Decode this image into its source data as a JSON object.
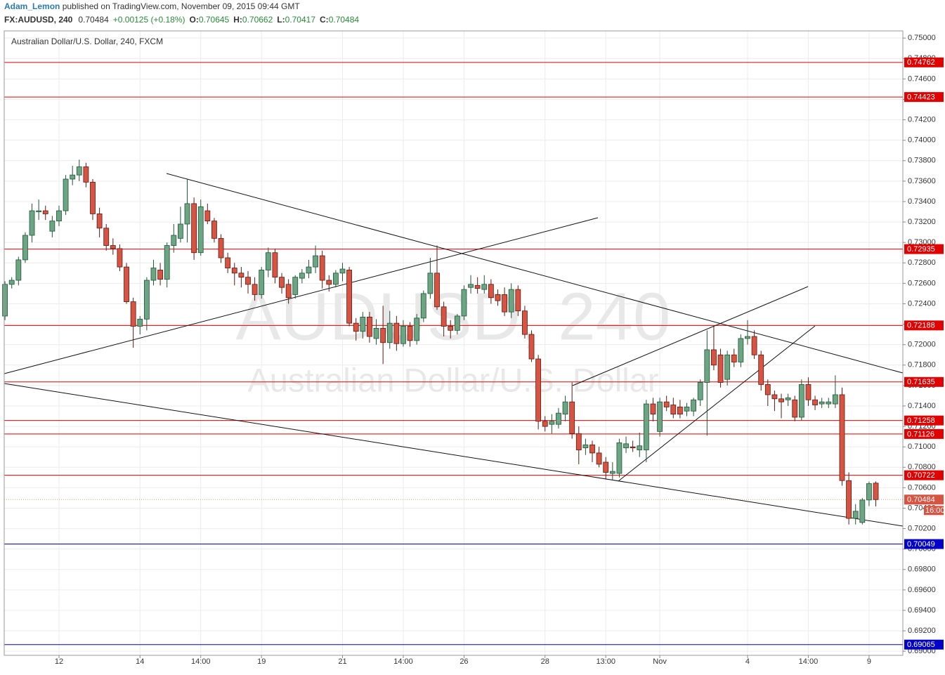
{
  "header": {
    "author": "Adam_Lemon",
    "published": " published on TradingView.com, November 09, 2015 09:44 GMT",
    "symbol": "FX:AUDUSD, 240",
    "change": "+0.00125 (+0.18%)",
    "ohlc_labels": [
      "O:",
      "H:",
      "L:",
      "C:"
    ]
  },
  "chart_data": {
    "type": "candlestick",
    "title": "Australian Dollar/U.S. Dollar, 240, FXCM",
    "watermark_symbol": "AUDUSD, 240",
    "watermark_name": "Australian Dollar/U.S. Dollar",
    "countdown": "16:00",
    "up_color": "#6ba583",
    "down_color": "#d75442",
    "up_border": "#225437",
    "down_border": "#5b1a13",
    "last_price_color": "#e8a36a",
    "grid": true,
    "ylim": [
      0.6896,
      0.7507
    ],
    "yticks": [
      {
        "value": 0.69,
        "label": "0.69000"
      },
      {
        "value": 0.692,
        "label": "0.69200"
      },
      {
        "value": 0.694,
        "label": "0.69400"
      },
      {
        "value": 0.696,
        "label": "0.69600"
      },
      {
        "value": 0.698,
        "label": "0.69800"
      },
      {
        "value": 0.7,
        "label": "0.70000"
      },
      {
        "value": 0.702,
        "label": "0.70200"
      },
      {
        "value": 0.704,
        "label": "0.70400"
      },
      {
        "value": 0.706,
        "label": "0.70600"
      },
      {
        "value": 0.708,
        "label": "0.70800"
      },
      {
        "value": 0.71,
        "label": "0.71000"
      },
      {
        "value": 0.712,
        "label": "0.71200"
      },
      {
        "value": 0.714,
        "label": "0.71400"
      },
      {
        "value": 0.716,
        "label": "0.71600"
      },
      {
        "value": 0.718,
        "label": "0.71800"
      },
      {
        "value": 0.72,
        "label": "0.72000"
      },
      {
        "value": 0.722,
        "label": "0.72200"
      },
      {
        "value": 0.724,
        "label": "0.72400"
      },
      {
        "value": 0.726,
        "label": "0.72600"
      },
      {
        "value": 0.728,
        "label": "0.72800"
      },
      {
        "value": 0.73,
        "label": "0.73000"
      },
      {
        "value": 0.732,
        "label": "0.73200"
      },
      {
        "value": 0.734,
        "label": "0.73400"
      },
      {
        "value": 0.736,
        "label": "0.73600"
      },
      {
        "value": 0.738,
        "label": "0.73800"
      },
      {
        "value": 0.74,
        "label": "0.74000"
      },
      {
        "value": 0.742,
        "label": "0.74200"
      },
      {
        "value": 0.744,
        "label": "0.74400"
      },
      {
        "value": 0.746,
        "label": "0.74600"
      },
      {
        "value": 0.748,
        "label": "0.74800"
      },
      {
        "value": 0.75,
        "label": "0.75000"
      }
    ],
    "levels": [
      {
        "value": 0.74762,
        "color": "#e00000"
      },
      {
        "value": 0.74423,
        "color": "#e00000"
      },
      {
        "value": 0.72935,
        "color": "#e00000"
      },
      {
        "value": 0.72188,
        "color": "#e00000"
      },
      {
        "value": 0.71635,
        "color": "#e00000"
      },
      {
        "value": 0.71258,
        "color": "#e00000"
      },
      {
        "value": 0.71126,
        "color": "#e00000"
      },
      {
        "value": 0.70722,
        "color": "#e00000"
      },
      {
        "value": 0.70049,
        "color": "#0000c8"
      },
      {
        "value": 0.69065,
        "color": "#0000c8"
      }
    ],
    "categories": [
      null,
      null,
      null,
      null,
      null,
      null,
      null,
      null,
      "12",
      null,
      null,
      null,
      null,
      null,
      null,
      null,
      null,
      null,
      null,
      null,
      "14",
      null,
      null,
      null,
      null,
      null,
      null,
      null,
      null,
      "14:00",
      null,
      null,
      null,
      null,
      null,
      null,
      null,
      null,
      "19",
      null,
      null,
      null,
      null,
      null,
      null,
      null,
      null,
      null,
      null,
      null,
      "21",
      null,
      null,
      null,
      null,
      null,
      null,
      null,
      null,
      "14:00",
      null,
      null,
      null,
      null,
      null,
      null,
      null,
      null,
      "26",
      null,
      null,
      null,
      null,
      null,
      null,
      null,
      null,
      null,
      null,
      null,
      "28",
      null,
      null,
      null,
      null,
      null,
      null,
      null,
      null,
      "13:00",
      null,
      null,
      null,
      null,
      null,
      null,
      null,
      "Nov",
      null,
      null,
      null,
      null,
      null,
      null,
      null,
      null,
      null,
      null,
      null,
      null,
      "4",
      null,
      null,
      null,
      null,
      null,
      null,
      null,
      null,
      "14:00",
      null,
      null,
      null,
      null,
      null,
      null,
      null,
      null,
      "9",
      null
    ],
    "candles": [
      [
        0.7228,
        0.7262,
        0.7224,
        0.7259
      ],
      [
        0.7259,
        0.7266,
        0.7255,
        0.7263
      ],
      [
        0.7263,
        0.7286,
        0.7258,
        0.7283
      ],
      [
        0.7283,
        0.731,
        0.728,
        0.7307
      ],
      [
        0.7307,
        0.7338,
        0.73,
        0.7331
      ],
      [
        0.733,
        0.7342,
        0.7322,
        0.7331
      ],
      [
        0.7331,
        0.7336,
        0.7322,
        0.7328
      ],
      [
        0.7311,
        0.7326,
        0.7305,
        0.7321
      ],
      [
        0.7321,
        0.7336,
        0.7316,
        0.7331
      ],
      [
        0.7331,
        0.7366,
        0.7327,
        0.7362
      ],
      [
        0.7362,
        0.7375,
        0.7356,
        0.7366
      ],
      [
        0.7366,
        0.7381,
        0.736,
        0.7374
      ],
      [
        0.7374,
        0.7378,
        0.7354,
        0.7359
      ],
      [
        0.7359,
        0.7362,
        0.7322,
        0.7328
      ],
      [
        0.7328,
        0.7334,
        0.7305,
        0.7314
      ],
      [
        0.7314,
        0.7318,
        0.7292,
        0.7297
      ],
      [
        0.7297,
        0.7304,
        0.7288,
        0.7294
      ],
      [
        0.7294,
        0.7298,
        0.7272,
        0.7276
      ],
      [
        0.7276,
        0.728,
        0.724,
        0.7242
      ],
      [
        0.7242,
        0.7246,
        0.7197,
        0.7218
      ],
      [
        0.7218,
        0.7228,
        0.721,
        0.7225
      ],
      [
        0.7225,
        0.7266,
        0.7214,
        0.7263
      ],
      [
        0.7263,
        0.7283,
        0.7258,
        0.7275
      ],
      [
        0.7273,
        0.728,
        0.7258,
        0.7264
      ],
      [
        0.7264,
        0.73,
        0.7256,
        0.7297
      ],
      [
        0.7297,
        0.7318,
        0.729,
        0.7307
      ],
      [
        0.7304,
        0.7335,
        0.73,
        0.7318
      ],
      [
        0.7318,
        0.7362,
        0.73,
        0.7338
      ],
      [
        0.7338,
        0.7344,
        0.7283,
        0.729
      ],
      [
        0.729,
        0.7342,
        0.7287,
        0.7335
      ],
      [
        0.7331,
        0.7338,
        0.7318,
        0.7321
      ],
      [
        0.7321,
        0.7324,
        0.73,
        0.7304
      ],
      [
        0.7304,
        0.7308,
        0.728,
        0.7285
      ],
      [
        0.7285,
        0.729,
        0.727,
        0.7275
      ],
      [
        0.7275,
        0.728,
        0.7258,
        0.727
      ],
      [
        0.727,
        0.7276,
        0.7256,
        0.7266
      ],
      [
        0.7266,
        0.7272,
        0.725,
        0.7259
      ],
      [
        0.7259,
        0.7266,
        0.7243,
        0.7249
      ],
      [
        0.7249,
        0.7276,
        0.7245,
        0.7273
      ],
      [
        0.7273,
        0.7295,
        0.7266,
        0.729
      ],
      [
        0.729,
        0.7294,
        0.726,
        0.7266
      ],
      [
        0.7266,
        0.727,
        0.725,
        0.7256
      ],
      [
        0.7259,
        0.7264,
        0.724,
        0.7246
      ],
      [
        0.7249,
        0.7268,
        0.7245,
        0.7266
      ],
      [
        0.7265,
        0.7274,
        0.726,
        0.727
      ],
      [
        0.727,
        0.7283,
        0.7265,
        0.7276
      ],
      [
        0.7276,
        0.7297,
        0.727,
        0.7287
      ],
      [
        0.7287,
        0.7292,
        0.7255,
        0.7263
      ],
      [
        0.7263,
        0.7268,
        0.7252,
        0.7259
      ],
      [
        0.7259,
        0.7273,
        0.7256,
        0.727
      ],
      [
        0.727,
        0.728,
        0.7262,
        0.7274
      ],
      [
        0.7273,
        0.7276,
        0.7218,
        0.7221
      ],
      [
        0.7221,
        0.7226,
        0.7204,
        0.7213
      ],
      [
        0.7213,
        0.7232,
        0.7206,
        0.7227
      ],
      [
        0.7227,
        0.7232,
        0.7202,
        0.7208
      ],
      [
        0.7206,
        0.7225,
        0.72,
        0.7216
      ],
      [
        0.7216,
        0.7238,
        0.7181,
        0.7202
      ],
      [
        0.7202,
        0.7233,
        0.7196,
        0.7221
      ],
      [
        0.7221,
        0.7228,
        0.7194,
        0.7201
      ],
      [
        0.7201,
        0.7224,
        0.7198,
        0.7218
      ],
      [
        0.7218,
        0.7222,
        0.7198,
        0.7204
      ],
      [
        0.7204,
        0.723,
        0.72,
        0.7226
      ],
      [
        0.7226,
        0.7253,
        0.7222,
        0.725
      ],
      [
        0.725,
        0.7285,
        0.7245,
        0.727
      ],
      [
        0.727,
        0.7297,
        0.7234,
        0.7237
      ],
      [
        0.7237,
        0.7242,
        0.7208,
        0.7218
      ],
      [
        0.7218,
        0.7224,
        0.7206,
        0.7214
      ],
      [
        0.7214,
        0.723,
        0.721,
        0.7228
      ],
      [
        0.7228,
        0.7258,
        0.7224,
        0.7254
      ],
      [
        0.7256,
        0.7268,
        0.725,
        0.7259
      ],
      [
        0.7258,
        0.7266,
        0.725,
        0.7255
      ],
      [
        0.7254,
        0.7268,
        0.725,
        0.7259
      ],
      [
        0.7259,
        0.7264,
        0.724,
        0.7246
      ],
      [
        0.7249,
        0.7254,
        0.7238,
        0.7243
      ],
      [
        0.7249,
        0.7256,
        0.7228,
        0.7232
      ],
      [
        0.7232,
        0.726,
        0.7226,
        0.7254
      ],
      [
        0.7254,
        0.7258,
        0.7228,
        0.7233
      ],
      [
        0.7233,
        0.7238,
        0.7206,
        0.721
      ],
      [
        0.721,
        0.7214,
        0.7183,
        0.7186
      ],
      [
        0.7186,
        0.719,
        0.7117,
        0.7125
      ],
      [
        0.7125,
        0.713,
        0.7115,
        0.712
      ],
      [
        0.7122,
        0.7132,
        0.7113,
        0.7125
      ],
      [
        0.7122,
        0.7138,
        0.7118,
        0.7133
      ],
      [
        0.7132,
        0.715,
        0.7125,
        0.7144
      ],
      [
        0.7144,
        0.7163,
        0.7108,
        0.7113
      ],
      [
        0.7113,
        0.712,
        0.7083,
        0.7097
      ],
      [
        0.7099,
        0.7108,
        0.7092,
        0.7102
      ],
      [
        0.7102,
        0.7106,
        0.7085,
        0.7094
      ],
      [
        0.7094,
        0.71,
        0.708,
        0.7083
      ],
      [
        0.7085,
        0.709,
        0.7068,
        0.7075
      ],
      [
        0.7074,
        0.7085,
        0.7068,
        0.7076
      ],
      [
        0.7074,
        0.7108,
        0.707,
        0.7104
      ],
      [
        0.7099,
        0.711,
        0.7094,
        0.7103
      ],
      [
        0.71,
        0.7106,
        0.7095,
        0.7099
      ],
      [
        0.7097,
        0.7114,
        0.709,
        0.7101
      ],
      [
        0.7097,
        0.7146,
        0.7085,
        0.7142
      ],
      [
        0.7142,
        0.7148,
        0.7125,
        0.7132
      ],
      [
        0.7115,
        0.7148,
        0.711,
        0.7144
      ],
      [
        0.7144,
        0.715,
        0.7135,
        0.7139
      ],
      [
        0.7141,
        0.7148,
        0.7128,
        0.7132
      ],
      [
        0.7139,
        0.7146,
        0.7128,
        0.7132
      ],
      [
        0.7135,
        0.7143,
        0.713,
        0.7139
      ],
      [
        0.7135,
        0.7148,
        0.713,
        0.7146
      ],
      [
        0.7146,
        0.7166,
        0.714,
        0.7163
      ],
      [
        0.7163,
        0.7214,
        0.7111,
        0.7195
      ],
      [
        0.7195,
        0.7218,
        0.7175,
        0.718
      ],
      [
        0.719,
        0.7196,
        0.7158,
        0.7163
      ],
      [
        0.7166,
        0.7194,
        0.716,
        0.719
      ],
      [
        0.719,
        0.7196,
        0.7178,
        0.7183
      ],
      [
        0.7183,
        0.721,
        0.7178,
        0.7206
      ],
      [
        0.7206,
        0.7224,
        0.72,
        0.7208
      ],
      [
        0.7208,
        0.7214,
        0.7186,
        0.719
      ],
      [
        0.719,
        0.7194,
        0.7155,
        0.7161
      ],
      [
        0.7161,
        0.7166,
        0.714,
        0.7151
      ],
      [
        0.7151,
        0.7155,
        0.7135,
        0.7147
      ],
      [
        0.7147,
        0.7152,
        0.7128,
        0.7144
      ],
      [
        0.7146,
        0.7152,
        0.714,
        0.7148
      ],
      [
        0.7146,
        0.715,
        0.7125,
        0.7129
      ],
      [
        0.7129,
        0.7166,
        0.7126,
        0.7161
      ],
      [
        0.7161,
        0.7168,
        0.714,
        0.7146
      ],
      [
        0.7146,
        0.715,
        0.7136,
        0.7141
      ],
      [
        0.7142,
        0.7148,
        0.7138,
        0.7144
      ],
      [
        0.7142,
        0.7148,
        0.7138,
        0.7144
      ],
      [
        0.7142,
        0.717,
        0.7138,
        0.7151
      ],
      [
        0.7151,
        0.7158,
        0.7062,
        0.7067
      ],
      [
        0.7067,
        0.7075,
        0.7024,
        0.703
      ],
      [
        0.703,
        0.7044,
        0.7024,
        0.7037
      ],
      [
        0.7026,
        0.705,
        0.7024,
        0.7048
      ],
      [
        0.7048,
        0.7066,
        0.7042,
        0.7064
      ],
      [
        0.70645,
        0.70662,
        0.70417,
        0.70484
      ]
    ]
  }
}
